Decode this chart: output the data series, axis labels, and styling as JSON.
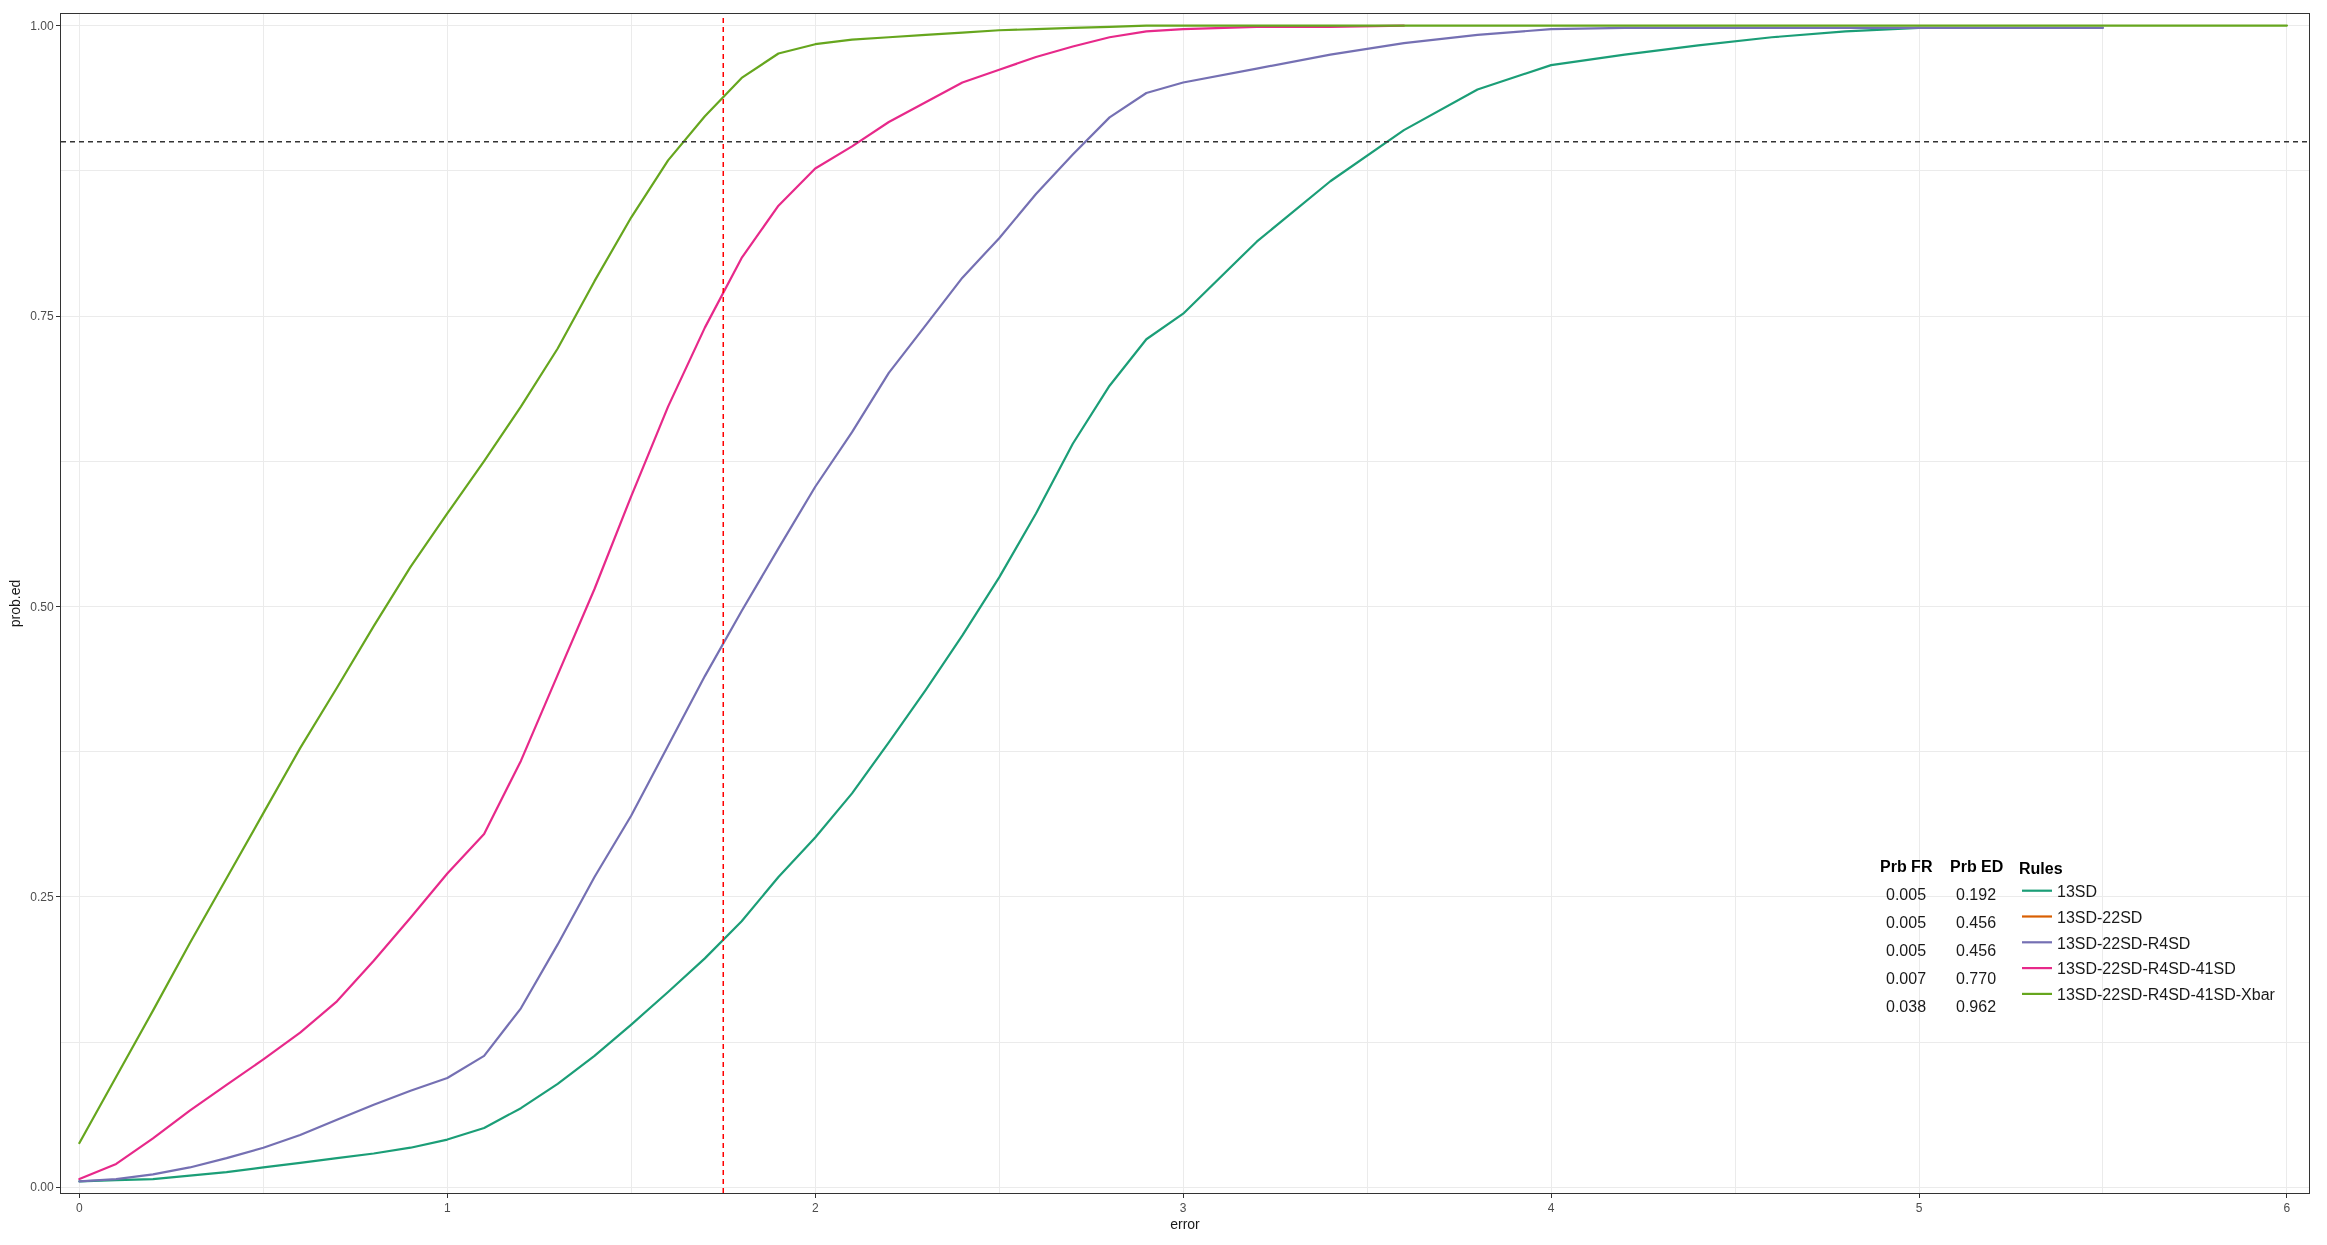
{
  "chart_data": {
    "type": "line",
    "xlabel": "error",
    "ylabel": "prob.ed",
    "legend_title": "Rules",
    "x": [
      0,
      0.1,
      0.2,
      0.3,
      0.4,
      0.5,
      0.6,
      0.7,
      0.8,
      0.9,
      1.0,
      1.1,
      1.2,
      1.3,
      1.4,
      1.5,
      1.6,
      1.7,
      1.8,
      1.9,
      2.0,
      2.1,
      2.2,
      2.3,
      2.4,
      2.5,
      2.6,
      2.7,
      2.8,
      2.9,
      3.0,
      3.2,
      3.4,
      3.6,
      3.8,
      4.0,
      4.2,
      4.4,
      4.6,
      4.8,
      5.0,
      5.5,
      6.0
    ],
    "series": [
      {
        "name": "13SD",
        "color": "#1b9e77",
        "values": [
          0.005,
          0.006,
          0.007,
          0.01,
          0.013,
          0.017,
          0.021,
          0.025,
          0.029,
          0.034,
          0.041,
          0.051,
          0.068,
          0.089,
          0.113,
          0.14,
          0.168,
          0.197,
          0.229,
          0.267,
          0.301,
          0.339,
          0.383,
          0.428,
          0.475,
          0.525,
          0.58,
          0.64,
          0.69,
          0.73,
          0.752,
          0.814,
          0.866,
          0.91,
          0.945,
          0.966,
          0.975,
          0.983,
          0.99,
          0.995,
          0.998,
          null,
          null
        ]
      },
      {
        "name": "13SD-22SD",
        "color": "#d95f02",
        "values": [
          null,
          null,
          null,
          null,
          null,
          null,
          null,
          null,
          null,
          null,
          null,
          null,
          null,
          null,
          null,
          null,
          null,
          null,
          null,
          null,
          null,
          null,
          null,
          null,
          null,
          null,
          null,
          null,
          null,
          null,
          null,
          null,
          null,
          null,
          null,
          null,
          null,
          null,
          null,
          null,
          null,
          null,
          null
        ]
      },
      {
        "name": "13SD-22SD-R4SD",
        "color": "#7570b3",
        "values": [
          0.005,
          0.007,
          0.011,
          0.017,
          0.025,
          0.034,
          0.045,
          0.058,
          0.071,
          0.083,
          0.094,
          0.113,
          0.154,
          0.209,
          0.267,
          0.32,
          0.38,
          0.44,
          0.496,
          0.55,
          0.603,
          0.65,
          0.701,
          0.742,
          0.783,
          0.817,
          0.855,
          0.889,
          0.921,
          0.942,
          0.951,
          0.963,
          0.975,
          0.985,
          0.992,
          0.997,
          0.998,
          0.998,
          0.998,
          0.998,
          0.998,
          0.998,
          null
        ]
      },
      {
        "name": "13SD-22SD-R4SD-41SD",
        "color": "#e7298a",
        "values": [
          0.007,
          0.02,
          0.042,
          0.066,
          0.088,
          0.11,
          0.133,
          0.16,
          0.195,
          0.232,
          0.27,
          0.304,
          0.367,
          0.441,
          0.515,
          0.595,
          0.672,
          0.74,
          0.8,
          0.845,
          0.877,
          0.896,
          0.917,
          0.934,
          0.951,
          0.962,
          0.973,
          0.982,
          0.99,
          0.995,
          0.997,
          0.999,
          0.999,
          1.0,
          null,
          null,
          null,
          null,
          null,
          null,
          null,
          null,
          null
        ]
      },
      {
        "name": "13SD-22SD-R4SD-41SD-Xbar",
        "color": "#66a61e",
        "values": [
          0.038,
          0.095,
          0.152,
          0.21,
          0.266,
          0.322,
          0.378,
          0.43,
          0.483,
          0.534,
          0.58,
          0.625,
          0.672,
          0.722,
          0.78,
          0.835,
          0.884,
          0.922,
          0.955,
          0.976,
          0.984,
          0.988,
          0.99,
          0.992,
          0.994,
          0.996,
          0.997,
          0.998,
          0.999,
          1.0,
          1.0,
          1.0,
          1.0,
          1.0,
          1.0,
          1.0,
          1.0,
          1.0,
          1.0,
          1.0,
          1.0,
          1.0,
          1.0
        ]
      }
    ],
    "xlim": [
      -0.05,
      6.06
    ],
    "xticks": [
      0,
      1,
      2,
      3,
      4,
      5,
      6
    ],
    "ylim": [
      -0.005,
      1.01
    ],
    "yticks": [
      {
        "value": 0,
        "label": "0.00"
      },
      0.25,
      {
        "value": 0.5,
        "label": "0.50"
      },
      0.75,
      {
        "value": 1,
        "label": "1.00"
      }
    ],
    "ref_lines": [
      {
        "axis": "y",
        "value": 0.9,
        "color": "#333333",
        "line_style": "dashed"
      },
      {
        "axis": "x",
        "value": 1.75,
        "color": "#ff0000",
        "line_style": "dashed"
      }
    ],
    "annotations": [
      "Prb FR",
      "Prb ED",
      "0.005",
      "0.192",
      "0.005",
      "0.456",
      "0.005",
      "0.456",
      "0.007",
      "0.770",
      "0.038",
      "0.962"
    ],
    "grid": true,
    "legend": "bottom right"
  }
}
